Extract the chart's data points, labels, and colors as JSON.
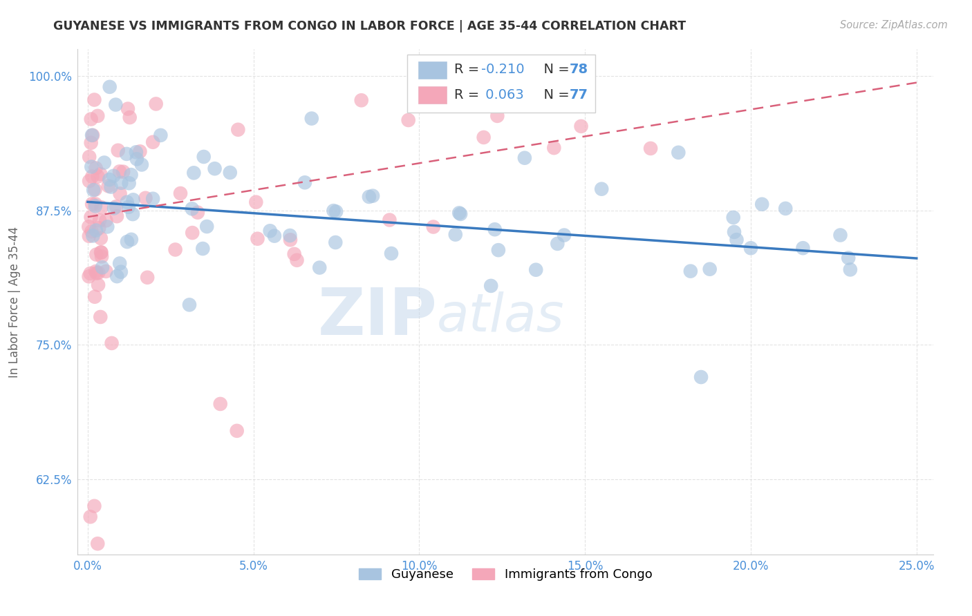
{
  "title": "GUYANESE VS IMMIGRANTS FROM CONGO IN LABOR FORCE | AGE 35-44 CORRELATION CHART",
  "source": "Source: ZipAtlas.com",
  "ylabel": "In Labor Force | Age 35-44",
  "xlim": [
    -0.003,
    0.255
  ],
  "ylim": [
    0.555,
    1.025
  ],
  "xtick_vals": [
    0.0,
    0.05,
    0.1,
    0.15,
    0.2,
    0.25
  ],
  "xticklabels": [
    "0.0%",
    "5.0%",
    "10.0%",
    "15.0%",
    "20.0%",
    "25.0%"
  ],
  "ytick_vals": [
    0.625,
    0.75,
    0.875,
    1.0
  ],
  "yticklabels": [
    "62.5%",
    "75.0%",
    "87.5%",
    "100.0%"
  ],
  "blue_color": "#a8c4e0",
  "pink_color": "#f4a7b9",
  "blue_line_color": "#3a7abf",
  "pink_line_color": "#d9607a",
  "r_blue": -0.21,
  "n_blue": 78,
  "r_pink": 0.063,
  "n_pink": 77,
  "watermark_zip": "ZIP",
  "watermark_atlas": "atlas",
  "watermark_color_zip": "#c5d8ec",
  "watermark_color_atlas": "#c5d8ec",
  "title_color": "#333333",
  "axis_color": "#4a90d9",
  "grid_color": "#e0e0e0",
  "background_color": "#ffffff",
  "blue_intercept": 0.883,
  "blue_slope": -0.21,
  "pink_intercept": 0.869,
  "pink_slope": 0.5
}
